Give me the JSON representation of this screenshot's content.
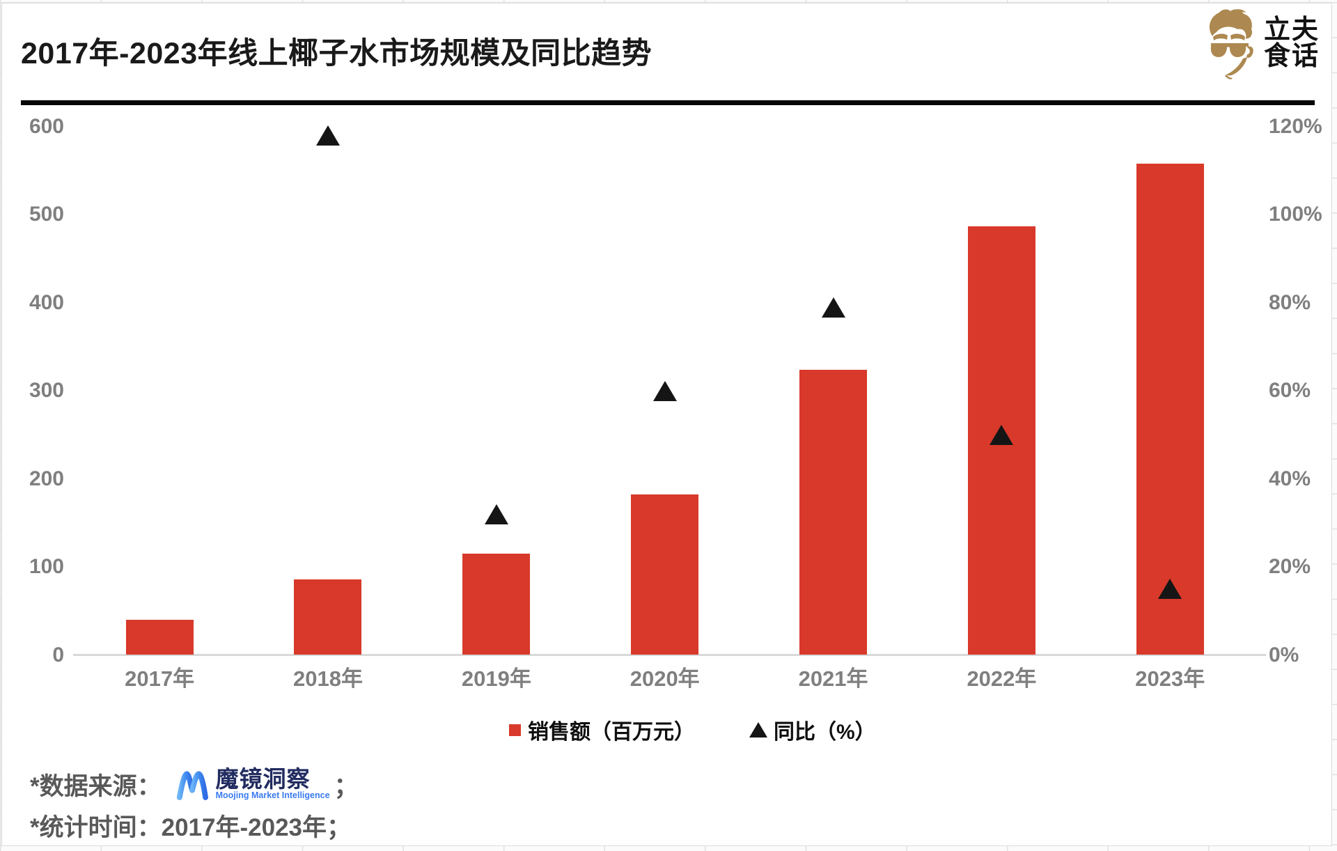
{
  "header": {
    "title": "2017年-2023年线上椰子水市场规模及同比趋势",
    "brand": {
      "name_line1": "立夫",
      "name_line2": "食话"
    }
  },
  "chart_data": {
    "type": "combo",
    "categories": [
      "2017年",
      "2018年",
      "2019年",
      "2020年",
      "2021年",
      "2022年",
      "2023年"
    ],
    "series": [
      {
        "name": "销售额（百万元）",
        "type": "bar",
        "axis": "left",
        "marker": "square",
        "values": [
          40,
          86,
          115,
          182,
          324,
          487,
          558
        ]
      },
      {
        "name": "同比（%）",
        "type": "scatter",
        "axis": "right",
        "marker": "triangle",
        "values": [
          null,
          118,
          32,
          60,
          79,
          50,
          15
        ]
      }
    ],
    "left_axis": {
      "min": 0,
      "max": 600,
      "ticks": [
        "0",
        "100",
        "200",
        "300",
        "400",
        "500",
        "600"
      ]
    },
    "right_axis": {
      "min": 0,
      "max": 120,
      "ticks": [
        "0%",
        "20%",
        "40%",
        "60%",
        "80%",
        "100%",
        "120%"
      ]
    },
    "grid": false,
    "legend_position": "bottom"
  },
  "legend": {
    "items": [
      {
        "label": "销售额（百万元）",
        "marker": "square"
      },
      {
        "label": "同比（%）",
        "marker": "triangle"
      }
    ]
  },
  "footer": {
    "source_prefix": "*数据来源：",
    "source_logo": {
      "name": "魔镜洞察",
      "subtitle": "Moojing Market Intelligence"
    },
    "source_suffix": "；",
    "period": "*统计时间：2017年-2023年；"
  },
  "colors": {
    "bar_red": "#d8392a",
    "marker_black": "#151515",
    "axis_gray": "#7f7f7f",
    "axis_line": "#d9d9d9",
    "title_black": "#1a1a1a",
    "divider_black": "#060606",
    "footer_gray": "#595959",
    "moojing_navy": "#222c60",
    "moojing_blue": "#3b7bf0",
    "brand_tan": "#ad8951"
  }
}
